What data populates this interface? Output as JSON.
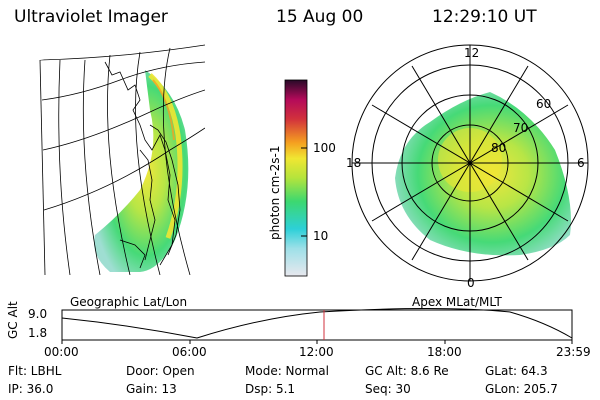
{
  "header": {
    "instrument": "Ultraviolet Imager",
    "date": "15 Aug 00",
    "time": "12:29:10 UT"
  },
  "panels": {
    "left_label": "Geographic Lat/Lon",
    "right_label": "Apex MLat/MLT"
  },
  "colorbar": {
    "label": "photon cm-2s-1",
    "ticks": [
      "100",
      "10"
    ],
    "colors": [
      "#e8e8ee",
      "#2dd0d8",
      "#3cd870",
      "#b4e43c",
      "#f0e632",
      "#f5a020",
      "#d2323c",
      "#b40a5a",
      "#280a28"
    ]
  },
  "polar": {
    "mlt_labels": {
      "top": "12",
      "right": "6",
      "bottom": "0",
      "left": "18"
    },
    "lat_labels": [
      "60",
      "70",
      "80"
    ]
  },
  "altitude_plot": {
    "axis_title": "GC Alt",
    "ymax": "9.0",
    "ymin": "1.8",
    "time_ticks": [
      "00:00",
      "06:00",
      "12:00",
      "18:00",
      "23:59"
    ],
    "marker_time": "12:29"
  },
  "info": {
    "filter": "Flt: LBHL",
    "ip": "IP: 36.0",
    "door": "Door: Open",
    "gain": "Gain: 13",
    "mode": "Mode: Normal",
    "dsp": "Dsp:    5.1",
    "gc_alt": "GC Alt: 8.6 Re",
    "seq": "Seq: 30",
    "glat": "GLat:  64.3",
    "glon": "GLon: 205.7"
  }
}
